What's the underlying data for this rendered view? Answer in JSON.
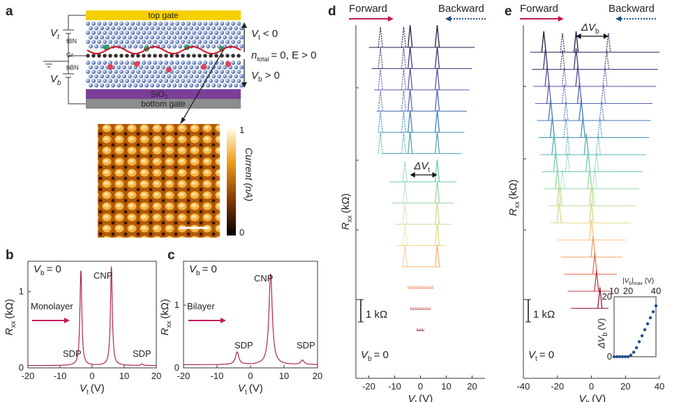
{
  "panels": {
    "a": "a",
    "b": "b",
    "c": "c",
    "d": "d",
    "e": "e"
  },
  "panel_a": {
    "top_gate": "top gate",
    "bottom_gate": "bottom gate",
    "sio2": "SiO",
    "sio2_sub": "2",
    "tbn": "tBN",
    "gr": "Gr",
    "bbn": "bBN",
    "vt_label": "V",
    "vt_sub": "t",
    "vb_label": "V",
    "vb_sub": "b",
    "cond1": "< 0",
    "cond2": "= 0,  E > 0",
    "cond3": "> 0",
    "ntotal": "n",
    "ntotal_sub": "total",
    "colorbar_title": "Current (nA)",
    "colorbar_max": "1",
    "colorbar_min": "0",
    "colors": {
      "top_gate": "#f5d000",
      "sio2": "#7b3f98",
      "bottom_gate": "#8c8c8c",
      "wave": "#d01020"
    }
  },
  "legend": {
    "forward": "Forward",
    "backward": "Backward",
    "forward_color": "#c2185b",
    "backward_color": "#1f4e8c"
  },
  "chart_data": [
    {
      "id": "b",
      "type": "line",
      "annotation_gate": "V",
      "annotation_gate_sub": "b",
      "annotation_gate_val": "= 0",
      "xlabel": "V",
      "xlabel_sub": "t",
      "xunit": "(V)",
      "ylabel": "R",
      "ylabel_sub": "xx",
      "yunit": "(kΩ)",
      "xlim": [
        -20,
        20
      ],
      "ylim": [
        0,
        1.4
      ],
      "xticks": [
        "-20",
        "-10",
        "0",
        "10",
        "20"
      ],
      "yticks": [
        "0",
        "1"
      ],
      "labels": {
        "sample": "Monolayer",
        "cnp": "CNP",
        "sdp_left": "SDP",
        "sdp_right": "SDP"
      },
      "peaks": [
        {
          "x": -3.5,
          "y": 1.28
        },
        {
          "x": 6.0,
          "y": 1.33
        },
        {
          "x": 15.5,
          "y": 0.05
        }
      ],
      "baseline": 0.03
    },
    {
      "id": "c",
      "type": "line",
      "annotation_gate": "V",
      "annotation_gate_sub": "b",
      "annotation_gate_val": "= 0",
      "xlabel": "V",
      "xlabel_sub": "t",
      "xunit": "(V)",
      "ylabel": "R",
      "ylabel_sub": "xx",
      "yunit": "(kΩ)",
      "xlim": [
        -20,
        20
      ],
      "ylim": [
        0,
        1.7
      ],
      "xticks": [
        "-20",
        "-10",
        "0",
        "10",
        "20"
      ],
      "yticks": [
        "0",
        "1"
      ],
      "labels": {
        "sample": "Bilayer",
        "cnp": "CNP",
        "sdp_left": "SDP",
        "sdp_right": "SDP"
      },
      "peaks": [
        {
          "x": -4,
          "y": 0.25
        },
        {
          "x": 6,
          "y": 1.5
        },
        {
          "x": 15.5,
          "y": 0.12
        }
      ],
      "baseline": 0.05
    },
    {
      "id": "d",
      "type": "line",
      "xlabel": "V",
      "xlabel_sub": "t",
      "xunit": "(V)",
      "ylabel": "R",
      "ylabel_sub": "xx",
      "yunit": "(kΩ)",
      "xlim": [
        -25,
        25
      ],
      "xticks": [
        "-20",
        "-10",
        "0",
        "10",
        "20"
      ],
      "scale_bar": "1 kΩ",
      "bottom_label": "V",
      "bottom_label_sub": "b",
      "bottom_label_val": "= 0",
      "delta_label": "ΔV",
      "delta_sub": "t",
      "curves": [
        {
          "xmin": -20,
          "xmax": 21,
          "fwd": [
            -4,
            6.5
          ],
          "bwd": [
            -15.5,
            -6.5
          ]
        },
        {
          "xmin": -19,
          "xmax": 20,
          "fwd": [
            -4,
            6.5
          ],
          "bwd": [
            -15.5,
            -6.5
          ]
        },
        {
          "xmin": -18,
          "xmax": 19,
          "fwd": [
            -4,
            6.5
          ],
          "bwd": [
            -15.5,
            -6.5
          ]
        },
        {
          "xmin": -17,
          "xmax": 18,
          "fwd": [
            -4,
            6.5
          ],
          "bwd": [
            -15.5,
            -6.5
          ]
        },
        {
          "xmin": -16,
          "xmax": 17,
          "fwd": [
            -4,
            6.5
          ],
          "bwd": [
            -15.5,
            -6.5
          ]
        },
        {
          "xmin": -15,
          "xmax": 16,
          "fwd": [
            -4,
            6.5
          ],
          "bwd": [
            -15.5,
            -6.5
          ]
        },
        {
          "xmin": -12,
          "xmax": 14,
          "fwd": [
            6.5
          ],
          "bwd": [
            -6
          ]
        },
        {
          "xmin": -11,
          "xmax": 13,
          "fwd": [
            6.5
          ],
          "bwd": [
            -6
          ]
        },
        {
          "xmin": -10,
          "xmax": 12,
          "fwd": [
            6.5
          ],
          "bwd": [
            -6
          ]
        },
        {
          "xmin": -9,
          "xmax": 10,
          "fwd": [
            6.5
          ],
          "bwd": [
            -6
          ]
        },
        {
          "xmin": -7,
          "xmax": 8,
          "fwd": [
            6.5
          ],
          "bwd": [
            -6
          ]
        },
        {
          "xmin": -5,
          "xmax": 5,
          "fwd": [],
          "bwd": []
        },
        {
          "xmin": -4,
          "xmax": 4,
          "fwd": [],
          "bwd": []
        },
        {
          "xmin": -1.5,
          "xmax": 1.5,
          "fwd": [],
          "bwd": []
        }
      ]
    },
    {
      "id": "e",
      "type": "line",
      "xlabel": "V",
      "xlabel_sub": "b",
      "xunit": "(V)",
      "ylabel": "R",
      "ylabel_sub": "xx",
      "yunit": "(kΩ)",
      "xlim": [
        -40,
        40
      ],
      "xticks": [
        "-40",
        "-20",
        "0",
        "20",
        "40"
      ],
      "scale_bar": "1 kΩ",
      "bottom_label": "V",
      "bottom_label_sub": "t",
      "bottom_label_val": "= 0",
      "delta_label": "ΔV",
      "delta_sub": "b",
      "curves": [
        {
          "xmin": -36,
          "xmax": 40,
          "fwd": [
            -28,
            -9
          ],
          "bwd": [
            -17,
            10
          ]
        },
        {
          "xmin": -35,
          "xmax": 39,
          "fwd": [
            -27,
            -9
          ],
          "bwd": [
            -17,
            9
          ]
        },
        {
          "xmin": -34,
          "xmax": 38,
          "fwd": [
            -26,
            -8
          ],
          "bwd": [
            -16,
            8
          ]
        },
        {
          "xmin": -33,
          "xmax": 36,
          "fwd": [
            -25,
            -7
          ],
          "bwd": [
            -16,
            7
          ]
        },
        {
          "xmin": -32,
          "xmax": 35,
          "fwd": [
            -24,
            -6
          ],
          "bwd": [
            -15,
            6
          ]
        },
        {
          "xmin": -31,
          "xmax": 34,
          "fwd": [
            -23,
            -5
          ],
          "bwd": [
            -15,
            5
          ]
        },
        {
          "xmin": -30,
          "xmax": 32,
          "fwd": [
            -22,
            -3
          ],
          "bwd": [
            -14,
            4
          ]
        },
        {
          "xmin": -29,
          "xmax": 30,
          "fwd": [
            -21,
            -2
          ],
          "bwd": [
            -14,
            3
          ]
        },
        {
          "xmin": -28,
          "xmax": 28,
          "fwd": [
            -20,
            -1
          ],
          "bwd": [
            -17,
            2
          ]
        },
        {
          "xmin": -26,
          "xmax": 26,
          "fwd": [
            -19,
            0
          ],
          "bwd": [
            -18,
            1
          ]
        },
        {
          "xmin": -24,
          "xmax": 23,
          "fwd": [
            -19,
            0
          ],
          "bwd": [
            -19,
            0
          ]
        },
        {
          "xmin": -20,
          "xmax": 20,
          "fwd": [
            0
          ],
          "bwd": []
        },
        {
          "xmin": -18,
          "xmax": 18,
          "fwd": [
            1
          ],
          "bwd": []
        },
        {
          "xmin": -16,
          "xmax": 15,
          "fwd": [
            2
          ],
          "bwd": []
        },
        {
          "xmin": -14,
          "xmax": 12,
          "fwd": [
            3
          ],
          "bwd": []
        },
        {
          "xmin": -12,
          "xmax": 10,
          "fwd": [
            5
          ],
          "bwd": []
        }
      ],
      "inset": {
        "xlabel": "|V",
        "xlabel_sub": "b",
        "xlabel_end": "|",
        "xlabel_sub2": "max",
        "xunit": "(V)",
        "ylabel": "ΔV",
        "ylabel_sub": "b",
        "yunit": "(V)",
        "xticks": [
          "10",
          "20",
          "40"
        ],
        "yticks": [
          "0",
          "20"
        ],
        "x": [
          10,
          12,
          14,
          16,
          18,
          20,
          22,
          24,
          26,
          28,
          30,
          32,
          34,
          36,
          38,
          40
        ],
        "y": [
          0,
          0,
          0,
          0,
          0,
          0,
          0.5,
          1.5,
          3,
          5,
          7,
          9,
          11,
          13,
          15,
          17
        ]
      }
    }
  ]
}
